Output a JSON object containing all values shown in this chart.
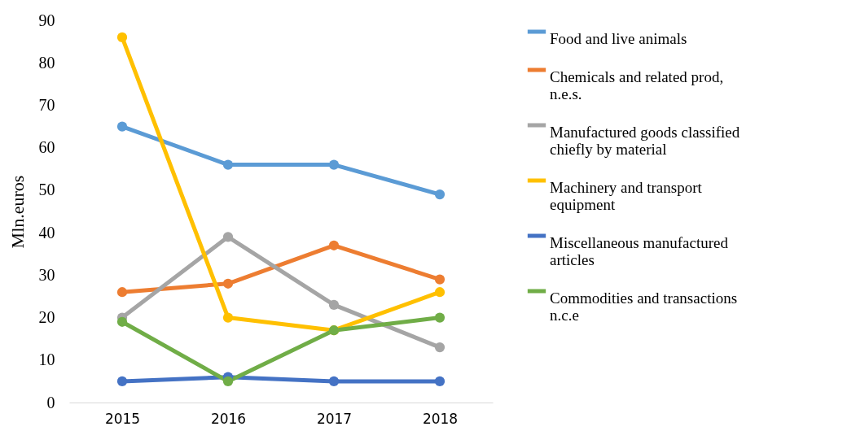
{
  "chart_data": {
    "type": "line",
    "ylabel": "Mln.euros",
    "categories": [
      "2015",
      "2016",
      "2017",
      "2018"
    ],
    "ylim": [
      0,
      90
    ],
    "yticks": [
      0,
      10,
      20,
      30,
      40,
      50,
      60,
      70,
      80,
      90
    ],
    "grid": false,
    "legend": "right",
    "marker": "circle",
    "line_style": "solid",
    "series": [
      {
        "name": "Food and live animals",
        "color": "#5b9bd5",
        "values": [
          65,
          56,
          56,
          49
        ]
      },
      {
        "name": "Chemicals and related prod, n.e.s.",
        "color": "#ed7d31",
        "values": [
          26,
          28,
          37,
          29
        ]
      },
      {
        "name": "Manufactured goods classified chiefly by material",
        "color": "#a5a5a5",
        "values": [
          20,
          39,
          23,
          13
        ]
      },
      {
        "name": "Machinery and transport equipment",
        "color": "#ffc000",
        "values": [
          86,
          20,
          17,
          26
        ]
      },
      {
        "name": "Miscellaneous manufactured articles",
        "color": "#4472c4",
        "values": [
          5,
          6,
          5,
          5
        ]
      },
      {
        "name": "Commodities and transactions n.c.e",
        "color": "#70ad47",
        "values": [
          19,
          5,
          17,
          20
        ]
      }
    ]
  }
}
